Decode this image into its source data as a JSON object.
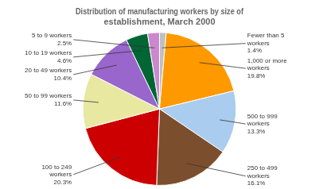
{
  "chart_data": {
    "type": "pie",
    "title": "Distribution of manufacturing workers by size of\nestablishment, March 2000",
    "categories": [
      "Fewer than 5\nworkers",
      "1,000 or more\nworkers",
      "500 to 999\nworkers",
      "250 to 499\nworkers",
      "100 to 249\nworkers",
      "50 to 99 workers",
      "20 to 49 workers",
      "10 to 19 workers",
      "5 to 9 workers"
    ],
    "values": [
      1.4,
      19.8,
      13.3,
      16.1,
      20.3,
      11.6,
      10.4,
      4.6,
      2.5
    ],
    "value_labels": [
      "1.4%",
      "19.8%",
      "13.3%",
      "16.1%",
      "20.3%",
      "11.6%",
      "10.4%",
      "4.6%",
      "2.5%"
    ],
    "data_labels": true,
    "colors": [
      "#c0c0c0",
      "#ff9900",
      "#aaccee",
      "#7b4f2e",
      "#cc0000",
      "#e8e8a0",
      "#9966cc",
      "#006633",
      "#cc88cc"
    ]
  }
}
